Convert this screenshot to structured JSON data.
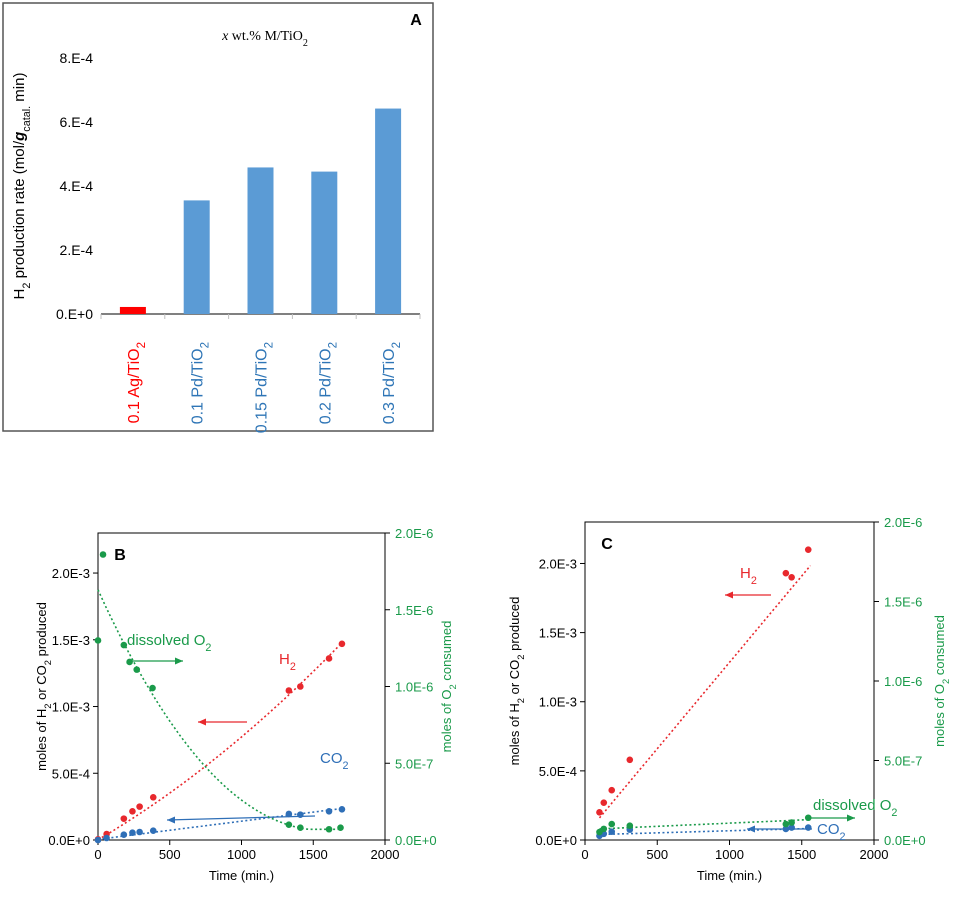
{
  "colors": {
    "ag": "#ff0000",
    "pd": "#5b9bd5",
    "pd_label": "#2e75b6",
    "h2": "#e8282d",
    "co2": "#2f6fb7",
    "o2": "#1a9a4a",
    "panel_border": "#555555",
    "grid": "#d9d9d9"
  },
  "chart_data": [
    {
      "panel": "A",
      "type": "bar",
      "title_x": "x",
      "title_rest": " wt.% M/TiO",
      "title_sub": "2",
      "ylabel_main": "H",
      "ylabel_sub1": "2",
      "ylabel_mid": " production rate (mol/",
      "ylabel_g": "g",
      "ylabel_sub2": "catal.",
      "ylabel_end": " min)",
      "yticks": [
        "0.E+0",
        "2.E-4",
        "4.E-4",
        "6.E-4",
        "8.E-4"
      ],
      "ylim": [
        0,
        0.0008
      ],
      "categories": [
        {
          "label": "0.1 Ag/TiO",
          "sub": "2",
          "color": "ag"
        },
        {
          "label": "0.1 Pd/TiO",
          "sub": "2",
          "color": "pd"
        },
        {
          "label": "0.15 Pd/TiO",
          "sub": "2",
          "color": "pd"
        },
        {
          "label": "0.2 Pd/TiO",
          "sub": "2",
          "color": "pd"
        },
        {
          "label": "0.3 Pd/TiO",
          "sub": "2",
          "color": "pd"
        }
      ],
      "values": [
        2.2e-05,
        0.000355,
        0.000458,
        0.000445,
        0.000642
      ]
    },
    {
      "panel": "B",
      "type": "scatter",
      "xlabel": "Time (min.)",
      "xlim": [
        0,
        2000
      ],
      "xticks": [
        "0",
        "500",
        "1000",
        "1500",
        "2000"
      ],
      "ylim_left": [
        0,
        0.0023
      ],
      "yticks_left": [
        {
          "v": 0,
          "label": "0.0E+0"
        },
        {
          "v": 0.0005,
          "label": "5.0E-4"
        },
        {
          "v": 0.001,
          "label": "1.0E-3"
        },
        {
          "v": 0.0015,
          "label": "1.5E-3"
        },
        {
          "v": 0.002,
          "label": "2.0E-3"
        }
      ],
      "ylabel_left": [
        "moles of H",
        "2",
        " or CO",
        "2",
        " produced"
      ],
      "ylim_right": [
        0,
        2e-06
      ],
      "yticks_right": [
        {
          "v": 0,
          "label": "0.0E+0"
        },
        {
          "v": 5e-07,
          "label": "5.0E-7"
        },
        {
          "v": 1e-06,
          "label": "1.0E-6"
        },
        {
          "v": 1.5e-06,
          "label": "1.5E-6"
        },
        {
          "v": 2e-06,
          "label": "2.0E-6"
        }
      ],
      "ylabel_right": [
        "moles of O",
        "2",
        " consumed"
      ],
      "series": [
        {
          "name": "H",
          "sub": "2",
          "color": "h2",
          "axis": "left",
          "x": [
            0,
            60,
            180,
            240,
            290,
            385,
            1330,
            1410,
            1610,
            1700
          ],
          "y": [
            5e-06,
            4.5e-05,
            0.00016,
            0.000215,
            0.00025,
            0.00032,
            0.00112,
            0.00115,
            0.00136,
            0.00147
          ]
        },
        {
          "name": "CO",
          "sub": "2",
          "color": "co2",
          "axis": "left",
          "x": [
            0,
            60,
            180,
            240,
            290,
            385,
            1330,
            1410,
            1610,
            1700
          ],
          "y": [
            0,
            1.5e-05,
            4e-05,
            5.5e-05,
            6e-05,
            7e-05,
            0.000195,
            0.00019,
            0.000215,
            0.00023
          ]
        },
        {
          "name": "dissolved O",
          "sub": "2",
          "color": "o2",
          "axis": "right",
          "x": [
            0,
            35,
            180,
            220,
            270,
            380,
            1330,
            1410,
            1610,
            1690
          ],
          "y": [
            1.3e-06,
            1.86e-06,
            1.27e-06,
            1.16e-06,
            1.11e-06,
            9.9e-07,
            1e-07,
            8e-08,
            7e-08,
            8e-08
          ]
        }
      ]
    },
    {
      "panel": "C",
      "type": "scatter",
      "xlabel": "Time (min.)",
      "xlim": [
        0,
        2000
      ],
      "xticks": [
        "0",
        "500",
        "1000",
        "1500",
        "2000"
      ],
      "ylim_left": [
        0,
        0.0023
      ],
      "yticks_left": [
        {
          "v": 0,
          "label": "0.0E+0"
        },
        {
          "v": 0.0005,
          "label": "5.0E-4"
        },
        {
          "v": 0.001,
          "label": "1.0E-3"
        },
        {
          "v": 0.0015,
          "label": "1.5E-3"
        },
        {
          "v": 0.002,
          "label": "2.0E-3"
        }
      ],
      "ylabel_left": [
        "moles of H",
        "2",
        " or CO",
        "2",
        " produced"
      ],
      "ylim_right": [
        0,
        2e-06
      ],
      "yticks_right": [
        {
          "v": 0,
          "label": "0.0E+0"
        },
        {
          "v": 5e-07,
          "label": "5.0E-7"
        },
        {
          "v": 1e-06,
          "label": "1.0E-6"
        },
        {
          "v": 1.5e-06,
          "label": "1.5E-6"
        },
        {
          "v": 2e-06,
          "label": "2.0E-6"
        }
      ],
      "ylabel_right": [
        "moles of O",
        "2",
        " consumed"
      ],
      "series": [
        {
          "name": "H",
          "sub": "2",
          "color": "h2",
          "axis": "left",
          "x": [
            100,
            130,
            185,
            310,
            1390,
            1430,
            1545
          ],
          "y": [
            0.0002,
            0.00027,
            0.00036,
            0.00058,
            0.00193,
            0.0019,
            0.0021
          ]
        },
        {
          "name": "CO",
          "sub": "2",
          "color": "co2",
          "axis": "left",
          "x": [
            100,
            130,
            185,
            310,
            1390,
            1430,
            1545
          ],
          "y": [
            3e-05,
            4.5e-05,
            6e-05,
            7.5e-05,
            8e-05,
            9e-05,
            9e-05
          ]
        },
        {
          "name": "dissolved O",
          "sub": "2",
          "color": "o2",
          "axis": "right",
          "x": [
            100,
            130,
            185,
            310,
            1390,
            1430,
            1545
          ],
          "y": [
            5e-08,
            7e-08,
            1e-07,
            9e-08,
            1e-07,
            1.1e-07,
            1.4e-07
          ]
        }
      ]
    }
  ]
}
